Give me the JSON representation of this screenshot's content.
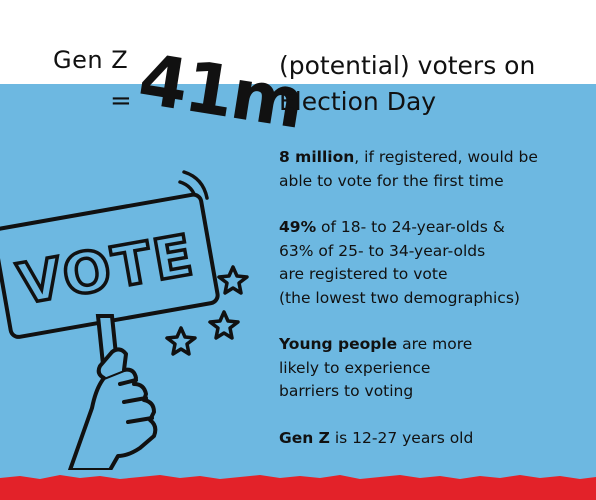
{
  "header": {
    "genz_label": "Gen Z",
    "equals": "=",
    "big_number": "41m",
    "headline_line1": "(potential) voters on",
    "headline_line2": "Election Day"
  },
  "facts": [
    {
      "bold": "8 million",
      "line1": ", if registered, would be",
      "line2": "able to vote for the first time"
    },
    {
      "bold": "49%",
      "line1": " of 18- to 24-year-olds &",
      "line2": "63% of 25- to 34-year-olds",
      "line3": "are registered to vote",
      "line4": "(the lowest two demographics)"
    },
    {
      "bold": "Young people",
      "line1": " are more",
      "line2": "likely to experience",
      "line3": "barriers to voting"
    },
    {
      "bold": "Gen Z",
      "line1": " is 12-27 years old"
    }
  ],
  "illustration": {
    "sign_text": "VOTE",
    "icons": [
      "hand-icon",
      "sign-icon",
      "star-icon",
      "signal-waves-icon"
    ]
  },
  "colors": {
    "blue": "#6db8e1",
    "red": "#e32229",
    "ink": "#111111",
    "white": "#ffffff"
  }
}
